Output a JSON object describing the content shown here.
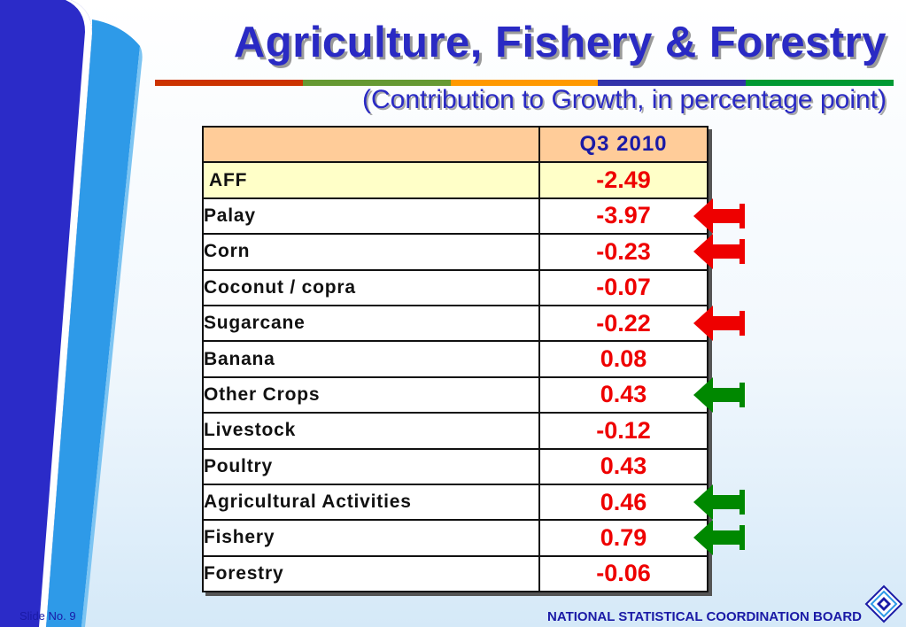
{
  "title": "Agriculture, Fishery & Forestry",
  "subtitle": "(Contribution to Growth, in percentage point)",
  "accent_bar_colors": [
    "#cc3300",
    "#669933",
    "#ff9900",
    "#3333aa",
    "#009933"
  ],
  "table": {
    "column_header": "Q3 2010",
    "rows": [
      {
        "label": "AFF",
        "value": "-2.49",
        "arrow": "none"
      },
      {
        "label": "Palay",
        "value": "-3.97",
        "arrow": "red-left"
      },
      {
        "label": "Corn",
        "value": "-0.23",
        "arrow": "red-left"
      },
      {
        "label": "Coconut / copra",
        "value": "-0.07",
        "arrow": "none"
      },
      {
        "label": "Sugarcane",
        "value": "-0.22",
        "arrow": "red-left"
      },
      {
        "label": "Banana",
        "value": "0.08",
        "arrow": "none"
      },
      {
        "label": "Other Crops",
        "value": "0.43",
        "arrow": "green-left"
      },
      {
        "label": "Livestock",
        "value": "-0.12",
        "arrow": "none"
      },
      {
        "label": "Poultry",
        "value": "0.43",
        "arrow": "none"
      },
      {
        "label": "Agricultural Activities",
        "value": "0.46",
        "arrow": "green-left"
      },
      {
        "label": "Fishery",
        "value": "0.79",
        "arrow": "green-left"
      },
      {
        "label": "Forestry",
        "value": "-0.06",
        "arrow": "none"
      }
    ]
  },
  "arrow_colors": {
    "red": "#ee0000",
    "green": "#008800"
  },
  "footer": {
    "slide_label": "Slide No. 9",
    "organization": "NATIONAL STATISTICAL COORDINATION BOARD"
  },
  "icons": {
    "logo": "nscb-diamond-logo-icon"
  }
}
